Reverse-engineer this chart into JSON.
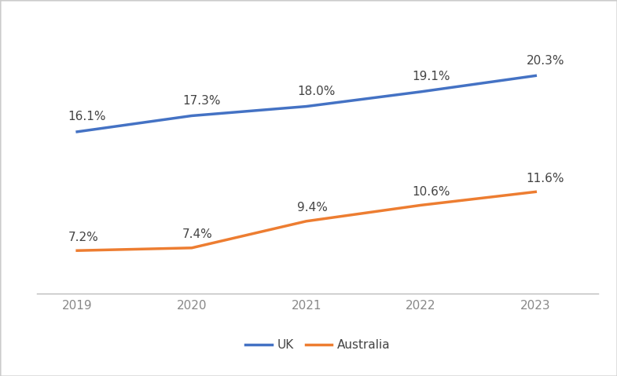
{
  "years": [
    2019,
    2020,
    2021,
    2022,
    2023
  ],
  "uk_values": [
    16.1,
    17.3,
    18.0,
    19.1,
    20.3
  ],
  "australia_values": [
    7.2,
    7.4,
    9.4,
    10.6,
    11.6
  ],
  "uk_labels": [
    "16.1%",
    "17.3%",
    "18.0%",
    "19.1%",
    "20.3%"
  ],
  "australia_labels": [
    "7.2%",
    "7.4%",
    "9.4%",
    "10.6%",
    "11.6%"
  ],
  "uk_color": "#4472C4",
  "australia_color": "#ED7D31",
  "line_width": 2.5,
  "background_color": "#ffffff",
  "legend_uk": "UK",
  "legend_australia": "Australia",
  "label_fontsize": 11,
  "tick_fontsize": 11,
  "legend_fontsize": 11,
  "ylim": [
    4,
    24
  ],
  "xlim": [
    2018.65,
    2023.55
  ],
  "border_color": "#cccccc",
  "tick_color": "#888888"
}
